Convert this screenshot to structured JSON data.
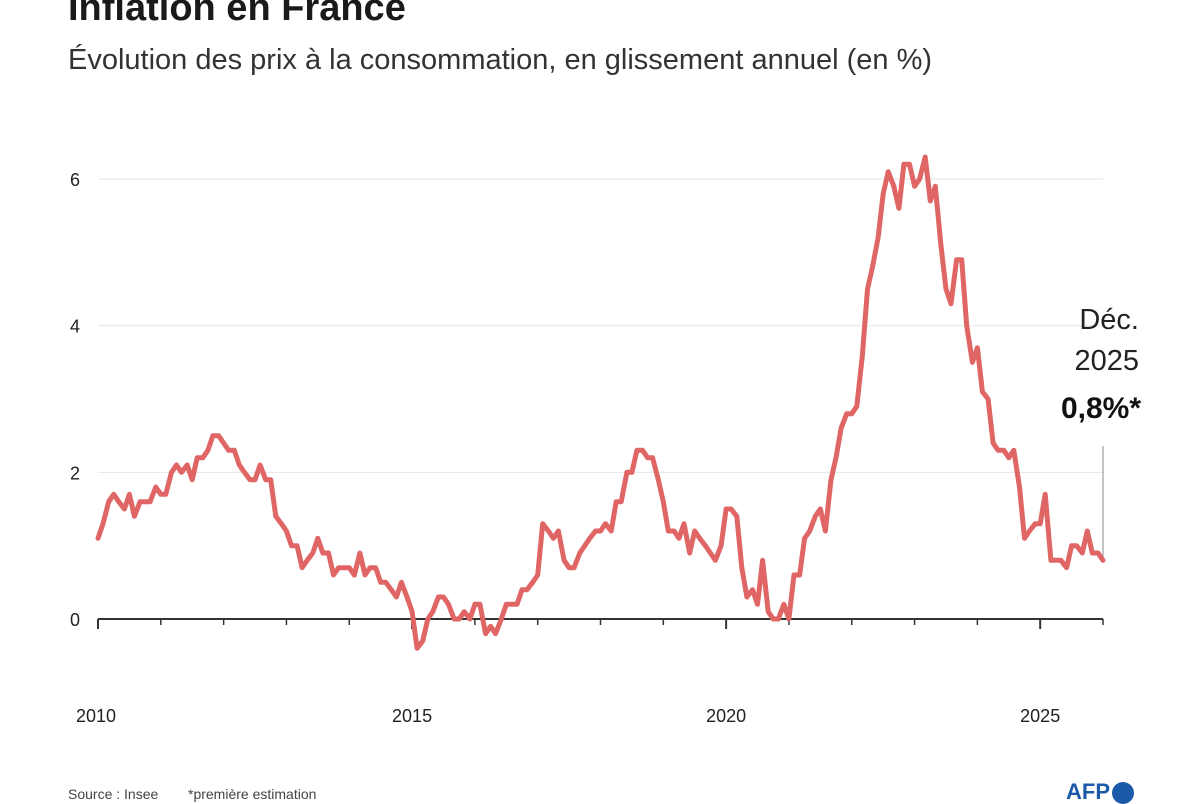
{
  "header": {
    "title": "Inflation en France",
    "subtitle": "Évolution des prix à la consommation, en glissement annuel (en %)"
  },
  "footer": {
    "source": "Source : Insee",
    "note": "*première estimation",
    "logo": "AFP"
  },
  "colors": {
    "series": "#e06666",
    "axis": "#333333",
    "grid": "#e6e6e6",
    "text": "#222222",
    "logo": "#1a5aa8"
  },
  "chart_data": {
    "type": "line",
    "title": "Inflation en France",
    "xlabel": "",
    "ylabel": "",
    "xlim": [
      2010,
      2026
    ],
    "ylim": [
      -0.6,
      6.6
    ],
    "grid": true,
    "x_ticks": [
      {
        "value": 2010,
        "label": "2010"
      },
      {
        "value": 2015,
        "label": "2015"
      },
      {
        "value": 2020,
        "label": "2020"
      },
      {
        "value": 2025,
        "label": "2025"
      }
    ],
    "y_ticks": [
      {
        "value": 0,
        "label": "0"
      },
      {
        "value": 2,
        "label": "2"
      },
      {
        "value": 4,
        "label": "4"
      },
      {
        "value": 6,
        "label": "6"
      }
    ],
    "annotation": {
      "x": 2026,
      "y": 0.8,
      "lines": [
        "Déc.",
        "2025"
      ],
      "value_label": "0,8%*"
    },
    "series": [
      {
        "color": "#e06666",
        "points": [
          [
            2010.0,
            1.1
          ],
          [
            2010.08,
            1.3
          ],
          [
            2010.17,
            1.6
          ],
          [
            2010.25,
            1.7
          ],
          [
            2010.33,
            1.6
          ],
          [
            2010.42,
            1.5
          ],
          [
            2010.5,
            1.7
          ],
          [
            2010.58,
            1.4
          ],
          [
            2010.67,
            1.6
          ],
          [
            2010.75,
            1.6
          ],
          [
            2010.83,
            1.6
          ],
          [
            2010.92,
            1.8
          ],
          [
            2011.0,
            1.7
          ],
          [
            2011.08,
            1.7
          ],
          [
            2011.17,
            2.0
          ],
          [
            2011.25,
            2.1
          ],
          [
            2011.33,
            2.0
          ],
          [
            2011.42,
            2.1
          ],
          [
            2011.5,
            1.9
          ],
          [
            2011.58,
            2.2
          ],
          [
            2011.67,
            2.2
          ],
          [
            2011.75,
            2.3
          ],
          [
            2011.83,
            2.5
          ],
          [
            2011.92,
            2.5
          ],
          [
            2012.0,
            2.4
          ],
          [
            2012.08,
            2.3
          ],
          [
            2012.17,
            2.3
          ],
          [
            2012.25,
            2.1
          ],
          [
            2012.33,
            2.0
          ],
          [
            2012.42,
            1.9
          ],
          [
            2012.5,
            1.9
          ],
          [
            2012.58,
            2.1
          ],
          [
            2012.67,
            1.9
          ],
          [
            2012.75,
            1.9
          ],
          [
            2012.83,
            1.4
          ],
          [
            2012.92,
            1.3
          ],
          [
            2013.0,
            1.2
          ],
          [
            2013.08,
            1.0
          ],
          [
            2013.17,
            1.0
          ],
          [
            2013.25,
            0.7
          ],
          [
            2013.33,
            0.8
          ],
          [
            2013.42,
            0.9
          ],
          [
            2013.5,
            1.1
          ],
          [
            2013.58,
            0.9
          ],
          [
            2013.67,
            0.9
          ],
          [
            2013.75,
            0.6
          ],
          [
            2013.83,
            0.7
          ],
          [
            2013.92,
            0.7
          ],
          [
            2014.0,
            0.7
          ],
          [
            2014.08,
            0.6
          ],
          [
            2014.17,
            0.9
          ],
          [
            2014.25,
            0.6
          ],
          [
            2014.33,
            0.7
          ],
          [
            2014.42,
            0.7
          ],
          [
            2014.5,
            0.5
          ],
          [
            2014.58,
            0.5
          ],
          [
            2014.67,
            0.4
          ],
          [
            2014.75,
            0.3
          ],
          [
            2014.83,
            0.5
          ],
          [
            2014.92,
            0.3
          ],
          [
            2015.0,
            0.1
          ],
          [
            2015.08,
            -0.4
          ],
          [
            2015.17,
            -0.3
          ],
          [
            2015.25,
            0.0
          ],
          [
            2015.33,
            0.1
          ],
          [
            2015.42,
            0.3
          ],
          [
            2015.5,
            0.3
          ],
          [
            2015.58,
            0.2
          ],
          [
            2015.67,
            0.0
          ],
          [
            2015.75,
            0.0
          ],
          [
            2015.83,
            0.1
          ],
          [
            2015.92,
            0.0
          ],
          [
            2016.0,
            0.2
          ],
          [
            2016.08,
            0.2
          ],
          [
            2016.17,
            -0.2
          ],
          [
            2016.25,
            -0.1
          ],
          [
            2016.33,
            -0.2
          ],
          [
            2016.42,
            0.0
          ],
          [
            2016.5,
            0.2
          ],
          [
            2016.58,
            0.2
          ],
          [
            2016.67,
            0.2
          ],
          [
            2016.75,
            0.4
          ],
          [
            2016.83,
            0.4
          ],
          [
            2016.92,
            0.5
          ],
          [
            2017.0,
            0.6
          ],
          [
            2017.08,
            1.3
          ],
          [
            2017.17,
            1.2
          ],
          [
            2017.25,
            1.1
          ],
          [
            2017.33,
            1.2
          ],
          [
            2017.42,
            0.8
          ],
          [
            2017.5,
            0.7
          ],
          [
            2017.58,
            0.7
          ],
          [
            2017.67,
            0.9
          ],
          [
            2017.75,
            1.0
          ],
          [
            2017.83,
            1.1
          ],
          [
            2017.92,
            1.2
          ],
          [
            2018.0,
            1.2
          ],
          [
            2018.08,
            1.3
          ],
          [
            2018.17,
            1.2
          ],
          [
            2018.25,
            1.6
          ],
          [
            2018.33,
            1.6
          ],
          [
            2018.42,
            2.0
          ],
          [
            2018.5,
            2.0
          ],
          [
            2018.58,
            2.3
          ],
          [
            2018.67,
            2.3
          ],
          [
            2018.75,
            2.2
          ],
          [
            2018.83,
            2.2
          ],
          [
            2018.92,
            1.9
          ],
          [
            2019.0,
            1.6
          ],
          [
            2019.08,
            1.2
          ],
          [
            2019.17,
            1.2
          ],
          [
            2019.25,
            1.1
          ],
          [
            2019.33,
            1.3
          ],
          [
            2019.42,
            0.9
          ],
          [
            2019.5,
            1.2
          ],
          [
            2019.58,
            1.1
          ],
          [
            2019.67,
            1.0
          ],
          [
            2019.75,
            0.9
          ],
          [
            2019.83,
            0.8
          ],
          [
            2019.92,
            1.0
          ],
          [
            2020.0,
            1.5
          ],
          [
            2020.08,
            1.5
          ],
          [
            2020.17,
            1.4
          ],
          [
            2020.25,
            0.7
          ],
          [
            2020.33,
            0.3
          ],
          [
            2020.42,
            0.4
          ],
          [
            2020.5,
            0.2
          ],
          [
            2020.58,
            0.8
          ],
          [
            2020.67,
            0.1
          ],
          [
            2020.75,
            0.0
          ],
          [
            2020.83,
            0.0
          ],
          [
            2020.92,
            0.2
          ],
          [
            2021.0,
            0.0
          ],
          [
            2021.08,
            0.6
          ],
          [
            2021.17,
            0.6
          ],
          [
            2021.25,
            1.1
          ],
          [
            2021.33,
            1.2
          ],
          [
            2021.42,
            1.4
          ],
          [
            2021.5,
            1.5
          ],
          [
            2021.58,
            1.2
          ],
          [
            2021.67,
            1.9
          ],
          [
            2021.75,
            2.2
          ],
          [
            2021.83,
            2.6
          ],
          [
            2021.92,
            2.8
          ],
          [
            2022.0,
            2.8
          ],
          [
            2022.08,
            2.9
          ],
          [
            2022.17,
            3.6
          ],
          [
            2022.25,
            4.5
          ],
          [
            2022.33,
            4.8
          ],
          [
            2022.42,
            5.2
          ],
          [
            2022.5,
            5.8
          ],
          [
            2022.58,
            6.1
          ],
          [
            2022.67,
            5.9
          ],
          [
            2022.75,
            5.6
          ],
          [
            2022.83,
            6.2
          ],
          [
            2022.92,
            6.2
          ],
          [
            2023.0,
            5.9
          ],
          [
            2023.08,
            6.0
          ],
          [
            2023.17,
            6.3
          ],
          [
            2023.25,
            5.7
          ],
          [
            2023.33,
            5.9
          ],
          [
            2023.42,
            5.1
          ],
          [
            2023.5,
            4.5
          ],
          [
            2023.58,
            4.3
          ],
          [
            2023.67,
            4.9
          ],
          [
            2023.75,
            4.9
          ],
          [
            2023.83,
            4.0
          ],
          [
            2023.92,
            3.5
          ],
          [
            2024.0,
            3.7
          ],
          [
            2024.08,
            3.1
          ],
          [
            2024.17,
            3.0
          ],
          [
            2024.25,
            2.4
          ],
          [
            2024.33,
            2.3
          ],
          [
            2024.42,
            2.3
          ],
          [
            2024.5,
            2.2
          ],
          [
            2024.58,
            2.3
          ],
          [
            2024.67,
            1.8
          ],
          [
            2024.75,
            1.1
          ],
          [
            2024.83,
            1.2
          ],
          [
            2024.92,
            1.3
          ],
          [
            2025.0,
            1.3
          ],
          [
            2025.08,
            1.7
          ],
          [
            2025.17,
            0.8
          ],
          [
            2025.25,
            0.8
          ],
          [
            2025.33,
            0.8
          ],
          [
            2025.42,
            0.7
          ],
          [
            2025.5,
            1.0
          ],
          [
            2025.58,
            1.0
          ],
          [
            2025.67,
            0.9
          ],
          [
            2025.75,
            1.2
          ],
          [
            2025.83,
            0.9
          ],
          [
            2025.92,
            0.9
          ],
          [
            2026.0,
            0.8
          ]
        ]
      }
    ]
  }
}
